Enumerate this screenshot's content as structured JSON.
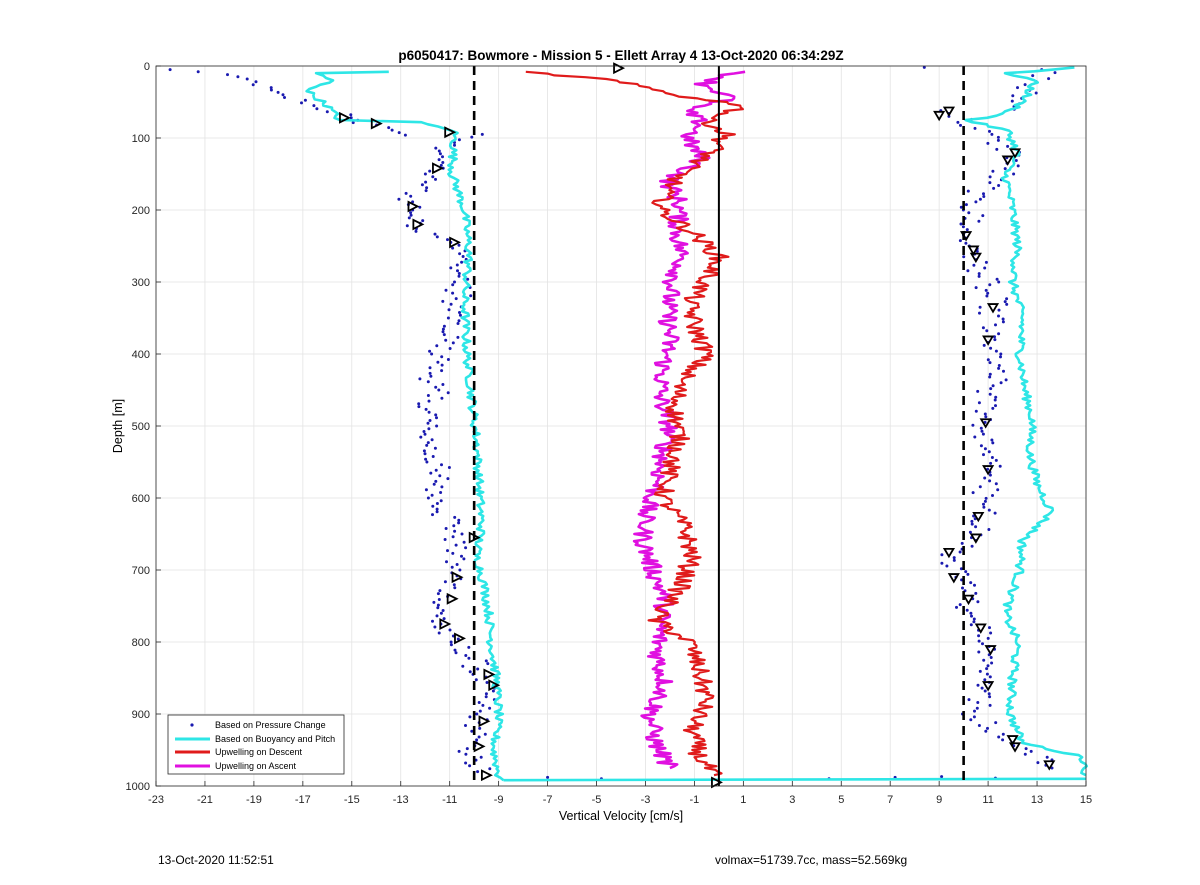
{
  "chart_data": {
    "type": "scatter",
    "title": "p6050417: Bowmore - Mission 5 - Ellett Array 4 13-Oct-2020 06:34:29Z",
    "xlabel": "Vertical Velocity [cm/s]",
    "ylabel": "Depth [m]",
    "xlim": [
      -23,
      15
    ],
    "ylim": [
      0,
      1000
    ],
    "y_reversed": true,
    "grid": true,
    "xticks": [
      "-23",
      "-21",
      "-19",
      "-17",
      "-15",
      "-13",
      "-11",
      "-9",
      "-7",
      "-5",
      "-3",
      "-1",
      "1",
      "3",
      "5",
      "7",
      "9",
      "11",
      "13",
      "15"
    ],
    "yticks": [
      "0",
      "100",
      "200",
      "300",
      "400",
      "500",
      "600",
      "700",
      "800",
      "900",
      "1000"
    ],
    "legend_position": "bottom-left",
    "reference_lines": [
      {
        "x": -10,
        "style": "dashed",
        "color": "#000000"
      },
      {
        "x": 10,
        "style": "dashed",
        "color": "#000000"
      },
      {
        "x": 0,
        "style": "solid",
        "color": "#000000"
      }
    ],
    "series": [
      {
        "name": "Based on Pressure Change",
        "kind": "points",
        "color": "#1a1ab0",
        "descent_points": [
          [
            -22.7,
            5
          ],
          [
            -21.2,
            8
          ],
          [
            -20.3,
            12
          ],
          [
            -19.6,
            18
          ],
          [
            -18.5,
            30
          ],
          [
            -17.9,
            40
          ],
          [
            -16.4,
            55
          ],
          [
            -15.2,
            72
          ],
          [
            -14.1,
            82
          ],
          [
            -12.5,
            96
          ],
          [
            -10.2,
            95
          ],
          [
            -11.0,
            110
          ],
          [
            -11.4,
            130
          ],
          [
            -11.8,
            150
          ],
          [
            -12.1,
            165
          ],
          [
            -12.8,
            185
          ],
          [
            -12.4,
            200
          ],
          [
            -12.3,
            222
          ],
          [
            -10.8,
            245
          ],
          [
            -10.6,
            300
          ],
          [
            -11.0,
            350
          ],
          [
            -11.3,
            400
          ],
          [
            -11.7,
            450
          ],
          [
            -11.9,
            500
          ],
          [
            -11.6,
            550
          ],
          [
            -11.5,
            600
          ],
          [
            -10.7,
            650
          ],
          [
            -10.9,
            700
          ],
          [
            -11.2,
            745
          ],
          [
            -11.5,
            775
          ],
          [
            -10.9,
            800
          ],
          [
            -10.0,
            830
          ],
          [
            -9.6,
            860
          ],
          [
            -9.7,
            900
          ],
          [
            -10.1,
            940
          ],
          [
            -9.9,
            980
          ]
        ],
        "ascent_points": [
          [
            8.0,
            2
          ],
          [
            13.5,
            5
          ],
          [
            12.6,
            30
          ],
          [
            11.9,
            60
          ],
          [
            9.3,
            62
          ],
          [
            9.8,
            70
          ],
          [
            11.0,
            95
          ],
          [
            12.1,
            120
          ],
          [
            11.6,
            150
          ],
          [
            10.8,
            170
          ],
          [
            10.3,
            200
          ],
          [
            10.1,
            235
          ],
          [
            10.4,
            265
          ],
          [
            10.9,
            300
          ],
          [
            11.2,
            335
          ],
          [
            11.0,
            380
          ],
          [
            11.3,
            420
          ],
          [
            11.1,
            460
          ],
          [
            10.9,
            495
          ],
          [
            11.0,
            560
          ],
          [
            10.7,
            625
          ],
          [
            10.5,
            655
          ],
          [
            9.5,
            675
          ],
          [
            9.7,
            710
          ],
          [
            10.2,
            740
          ],
          [
            10.7,
            780
          ],
          [
            11.1,
            810
          ],
          [
            11.0,
            860
          ],
          [
            10.3,
            900
          ],
          [
            12.0,
            940
          ],
          [
            13.1,
            960
          ],
          [
            13.6,
            975
          ]
        ],
        "surface_points": [
          [
            4.5,
            990
          ],
          [
            7.2,
            988
          ],
          [
            9.1,
            987
          ],
          [
            11.3,
            989
          ],
          [
            -4.8,
            990
          ],
          [
            -7.0,
            988
          ]
        ]
      },
      {
        "name": "Based on Buoyancy and Pitch",
        "kind": "line",
        "color": "#2ee6e6",
        "descent": [
          [
            -13.6,
            8
          ],
          [
            -16.5,
            10
          ],
          [
            -15.8,
            20
          ],
          [
            -16.8,
            35
          ],
          [
            -16.0,
            55
          ],
          [
            -15.5,
            75
          ],
          [
            -12.3,
            78
          ],
          [
            -10.8,
            90
          ],
          [
            -10.9,
            150
          ],
          [
            -10.4,
            200
          ],
          [
            -10.2,
            260
          ],
          [
            -10.4,
            320
          ],
          [
            -10.3,
            400
          ],
          [
            -10.1,
            460
          ],
          [
            -9.9,
            520
          ],
          [
            -9.8,
            580
          ],
          [
            -9.7,
            640
          ],
          [
            -9.9,
            680
          ],
          [
            -9.6,
            720
          ],
          [
            -9.4,
            760
          ],
          [
            -9.3,
            800
          ],
          [
            -9.1,
            850
          ],
          [
            -9.0,
            900
          ],
          [
            -9.2,
            950
          ],
          [
            -9.0,
            985
          ],
          [
            -8.8,
            992
          ]
        ],
        "ascent": [
          [
            14.6,
            2
          ],
          [
            11.8,
            10
          ],
          [
            12.9,
            20
          ],
          [
            12.6,
            40
          ],
          [
            12.1,
            60
          ],
          [
            11.0,
            72
          ],
          [
            10.1,
            75
          ],
          [
            11.8,
            90
          ],
          [
            12.2,
            120
          ],
          [
            11.7,
            150
          ],
          [
            12.0,
            200
          ],
          [
            12.2,
            250
          ],
          [
            12.0,
            300
          ],
          [
            12.4,
            350
          ],
          [
            12.3,
            400
          ],
          [
            12.5,
            450
          ],
          [
            12.8,
            490
          ],
          [
            12.7,
            540
          ],
          [
            13.0,
            580
          ],
          [
            13.6,
            620
          ],
          [
            12.4,
            660
          ],
          [
            12.3,
            700
          ],
          [
            11.7,
            760
          ],
          [
            12.2,
            800
          ],
          [
            12.0,
            850
          ],
          [
            11.9,
            900
          ],
          [
            12.4,
            940
          ],
          [
            14.9,
            960
          ],
          [
            15.0,
            985
          ]
        ],
        "surface": [
          [
            -8.8,
            992
          ],
          [
            15.0,
            990
          ]
        ]
      },
      {
        "name": "Upwelling on Descent",
        "kind": "line",
        "color": "#e01b1b",
        "points": [
          [
            -8.1,
            8
          ],
          [
            -4.8,
            18
          ],
          [
            -3.0,
            30
          ],
          [
            -1.0,
            45
          ],
          [
            1.2,
            55
          ],
          [
            -0.5,
            75
          ],
          [
            0.3,
            95
          ],
          [
            -0.3,
            120
          ],
          [
            -1.4,
            145
          ],
          [
            -2.2,
            175
          ],
          [
            -2.4,
            200
          ],
          [
            -1.1,
            230
          ],
          [
            0.0,
            265
          ],
          [
            -0.4,
            290
          ],
          [
            -1.2,
            330
          ],
          [
            -1.0,
            360
          ],
          [
            -0.5,
            400
          ],
          [
            -1.6,
            440
          ],
          [
            -1.8,
            480
          ],
          [
            -1.6,
            520
          ],
          [
            -2.0,
            560
          ],
          [
            -2.3,
            600
          ],
          [
            -1.4,
            640
          ],
          [
            -1.1,
            680
          ],
          [
            -1.5,
            720
          ],
          [
            -2.6,
            770
          ],
          [
            -1.2,
            800
          ],
          [
            -0.8,
            840
          ],
          [
            -0.5,
            880
          ],
          [
            -1.1,
            920
          ],
          [
            -0.8,
            960
          ],
          [
            -0.2,
            985
          ]
        ]
      },
      {
        "name": "Upwelling on Ascent",
        "kind": "line",
        "color": "#e010e0",
        "points": [
          [
            0.8,
            8
          ],
          [
            -0.6,
            25
          ],
          [
            0.5,
            45
          ],
          [
            -1.4,
            60
          ],
          [
            -0.7,
            80
          ],
          [
            -1.3,
            100
          ],
          [
            -0.7,
            130
          ],
          [
            -2.1,
            160
          ],
          [
            -1.6,
            190
          ],
          [
            -1.7,
            230
          ],
          [
            -1.5,
            270
          ],
          [
            -1.9,
            300
          ],
          [
            -2.1,
            340
          ],
          [
            -2.0,
            380
          ],
          [
            -2.3,
            420
          ],
          [
            -2.4,
            460
          ],
          [
            -2.0,
            500
          ],
          [
            -2.3,
            540
          ],
          [
            -2.5,
            580
          ],
          [
            -3.0,
            620
          ],
          [
            -3.1,
            660
          ],
          [
            -2.7,
            700
          ],
          [
            -2.2,
            740
          ],
          [
            -2.4,
            780
          ],
          [
            -2.5,
            820
          ],
          [
            -2.2,
            860
          ],
          [
            -2.8,
            900
          ],
          [
            -2.6,
            940
          ],
          [
            -2.0,
            975
          ]
        ]
      }
    ],
    "markers": {
      "descent": [
        [
          -4.1,
          3
        ],
        [
          -15.3,
          72
        ],
        [
          -14.0,
          80
        ],
        [
          -11.0,
          92
        ],
        [
          -11.5,
          142
        ],
        [
          -12.5,
          195
        ],
        [
          -12.3,
          220
        ],
        [
          -10.8,
          245
        ],
        [
          -10.0,
          655
        ],
        [
          -10.7,
          710
        ],
        [
          -10.9,
          740
        ],
        [
          -11.2,
          775
        ],
        [
          -10.6,
          795
        ],
        [
          -9.4,
          845
        ],
        [
          -9.2,
          860
        ],
        [
          -9.6,
          910
        ],
        [
          -9.8,
          945
        ],
        [
          -9.5,
          985
        ],
        [
          -0.1,
          995
        ]
      ],
      "ascent": [
        [
          9.4,
          62
        ],
        [
          9.0,
          68
        ],
        [
          12.1,
          120
        ],
        [
          11.8,
          130
        ],
        [
          10.1,
          235
        ],
        [
          10.4,
          255
        ],
        [
          10.5,
          265
        ],
        [
          11.2,
          335
        ],
        [
          11.0,
          380
        ],
        [
          10.9,
          495
        ],
        [
          11.0,
          560
        ],
        [
          10.6,
          625
        ],
        [
          10.5,
          655
        ],
        [
          9.4,
          675
        ],
        [
          9.6,
          710
        ],
        [
          10.2,
          740
        ],
        [
          10.7,
          780
        ],
        [
          11.1,
          810
        ],
        [
          11.0,
          860
        ],
        [
          12.0,
          935
        ],
        [
          12.1,
          945
        ],
        [
          13.5,
          970
        ]
      ]
    }
  },
  "footer": {
    "left": "13-Oct-2020 11:52:51",
    "right": "volmax=51739.7cc, mass=52.569kg"
  }
}
